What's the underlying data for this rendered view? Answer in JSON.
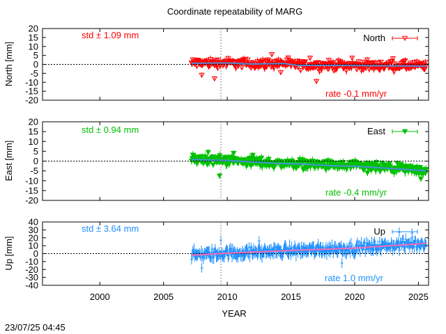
{
  "chart_data": {
    "type": "scatter",
    "title": "Coordinate repeatability of MARG",
    "xlabel": "YEAR",
    "xlim": [
      1995.5,
      2025.8
    ],
    "xticks": [
      2000,
      2005,
      2010,
      2015,
      2020,
      2025
    ],
    "xtick_labels": [
      "2000",
      "2005",
      "2010",
      "2015",
      "2020",
      "2025"
    ],
    "vline_year": 2009.5,
    "timestamp": "23/07/25 04:45",
    "series_start_year": 2007.2,
    "series_end_year": 2025.6,
    "panels": [
      {
        "name": "north",
        "ylabel": "North [mm]",
        "ylim": [
          -20,
          20
        ],
        "yticks": [
          20,
          15,
          10,
          5,
          0,
          -5,
          -10,
          -15,
          -20
        ],
        "ytick_labels": [
          "20",
          "15",
          "10",
          "5",
          "0",
          "-5",
          "-10",
          "-15",
          "-20"
        ],
        "legend": "North",
        "marker": "triangle-down-open",
        "color": "#ff0000",
        "std_text": "std ± 1.09 mm",
        "rate_text": "rate -0.1 mm/yr",
        "rate_mm_per_yr": -0.1,
        "trend": [
          [
            2007.2,
            0.6
          ],
          [
            2010.0,
            0.8
          ],
          [
            2012.0,
            0.2
          ],
          [
            2014.5,
            0.5
          ],
          [
            2015.5,
            -0.6
          ],
          [
            2019.0,
            -0.6
          ],
          [
            2022.0,
            -0.8
          ],
          [
            2025.6,
            -1.0
          ]
        ],
        "scatter_mm": 2.2,
        "errorbar_mm": 1.5,
        "outliers": [
          [
            2008.0,
            -6.0
          ],
          [
            2009.0,
            -8.0
          ],
          [
            2013.5,
            5.5
          ],
          [
            2014.2,
            -4.5
          ],
          [
            2016.5,
            3.5
          ],
          [
            2017.0,
            -9.5
          ],
          [
            2019.8,
            3.5
          ],
          [
            2023.0,
            3.2
          ]
        ]
      },
      {
        "name": "east",
        "ylabel": "East [mm]",
        "ylim": [
          -20,
          20
        ],
        "yticks": [
          20,
          15,
          10,
          5,
          0,
          -5,
          -10,
          -15,
          -20
        ],
        "ytick_labels": [
          "20",
          "15",
          "10",
          "5",
          "0",
          "-5",
          "-10",
          "-15",
          "-20"
        ],
        "legend": "East",
        "marker": "triangle-down-filled",
        "color": "#00c000",
        "std_text": "std ± 0.94 mm",
        "rate_text": "rate -0.4 mm/yr",
        "rate_mm_per_yr": -0.4,
        "trend": [
          [
            2007.2,
            0.8
          ],
          [
            2010.0,
            0.3
          ],
          [
            2014.0,
            -1.2
          ],
          [
            2016.0,
            -1.5
          ],
          [
            2018.0,
            -2.3
          ],
          [
            2020.0,
            -2.6
          ],
          [
            2022.0,
            -3.4
          ],
          [
            2025.6,
            -4.9
          ]
        ],
        "scatter_mm": 2.0,
        "errorbar_mm": 1.6,
        "outliers": [
          [
            2008.5,
            4.5
          ],
          [
            2009.4,
            -7.5
          ],
          [
            2010.5,
            4.0
          ],
          [
            2012.0,
            3.0
          ],
          [
            2021.0,
            -6.0
          ],
          [
            2025.2,
            -9.0
          ]
        ]
      },
      {
        "name": "up",
        "ylabel": "Up [mm]",
        "ylim": [
          -40,
          40
        ],
        "yticks": [
          40,
          30,
          20,
          10,
          0,
          -10,
          -20,
          -30,
          -40
        ],
        "ytick_labels": [
          "40",
          "30",
          "20",
          "10",
          "0",
          "-10",
          "-20",
          "-30",
          "-40"
        ],
        "legend": "Up",
        "marker": "none",
        "color": "#1e90ff",
        "trend_color": "#ff69b4",
        "std_text": "std ± 3.64 mm",
        "rate_text": "rate  1.0 mm/yr",
        "rate_mm_per_yr": 1.0,
        "trend": [
          [
            2007.2,
            -2.0
          ],
          [
            2010.0,
            0.5
          ],
          [
            2015.0,
            4.0
          ],
          [
            2020.0,
            7.0
          ],
          [
            2025.6,
            13.0
          ]
        ],
        "scatter_mm": 5.5,
        "errorbar_mm": 6.0,
        "outliers": [
          [
            2008.0,
            -18.0
          ],
          [
            2009.5,
            17.0
          ],
          [
            2012.5,
            16.0
          ],
          [
            2019.0,
            -12.0
          ],
          [
            2023.5,
            27.0
          ],
          [
            2024.5,
            26.0
          ]
        ]
      }
    ]
  }
}
